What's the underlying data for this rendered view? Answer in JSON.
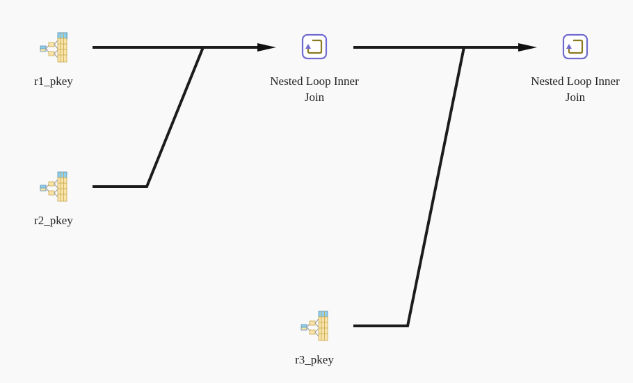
{
  "diagram": {
    "nodes": [
      {
        "id": "r1",
        "label": "r1_pkey",
        "icon": "index-scan-icon"
      },
      {
        "id": "r2",
        "label": "r2_pkey",
        "icon": "index-scan-icon"
      },
      {
        "id": "j1",
        "label_line1": "Nested Loop Inner",
        "label_line2": "Join",
        "icon": "nested-loop-icon"
      },
      {
        "id": "r3",
        "label": "r3_pkey",
        "icon": "index-scan-icon"
      },
      {
        "id": "j2",
        "label_line1": "Nested Loop Inner",
        "label_line2": "Join",
        "icon": "nested-loop-icon"
      }
    ],
    "edges": [
      {
        "from": "r1",
        "to": "j1"
      },
      {
        "from": "r2",
        "to": "j1"
      },
      {
        "from": "j1",
        "to": "j2"
      },
      {
        "from": "r3",
        "to": "j2"
      }
    ],
    "colors": {
      "edge": "#1c1c1c",
      "table_header": "#8fd0ee",
      "table_body": "#f8e3a8",
      "table_border": "#c8a850",
      "loop_frame": "#6f6ad0",
      "loop_arrow": "#8a7a20"
    }
  }
}
